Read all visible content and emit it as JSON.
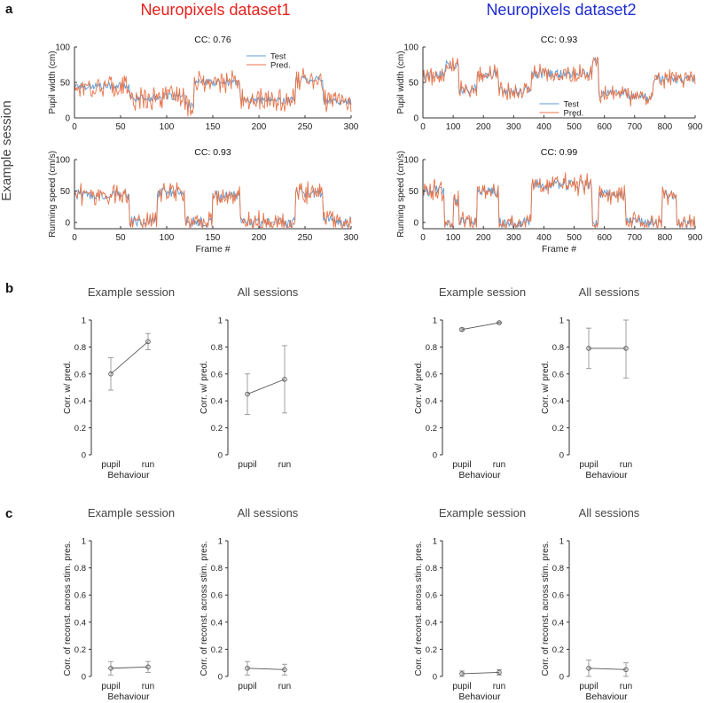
{
  "panel_labels": {
    "a": "a",
    "b": "b",
    "c": "c"
  },
  "dataset_titles": [
    {
      "text": "Neuropixels dataset1",
      "color": "#e8211c"
    },
    {
      "text": "Neuropixels dataset2",
      "color": "#1d2bd0"
    }
  ],
  "row_label": "Example session",
  "colors": {
    "test": "#5b9bd5",
    "pred": "#e8744a",
    "axis": "#333333",
    "marker": "#555555"
  },
  "chart_data": [
    {
      "id": "d1-pupil",
      "type": "line",
      "cc_label": "CC: 0.76",
      "ylabel": "Pupil width (cm)",
      "xlabel": "",
      "xlim": [
        0,
        300
      ],
      "ylim": [
        0,
        100
      ],
      "xticks": [
        0,
        50,
        100,
        150,
        200,
        250,
        300
      ],
      "yticks": [
        0,
        50,
        100
      ],
      "legend": [
        "Test",
        "Pred."
      ],
      "legend_position": "top-right",
      "segments": [
        [
          0,
          60,
          45
        ],
        [
          60,
          90,
          28
        ],
        [
          90,
          120,
          30
        ],
        [
          120,
          130,
          18
        ],
        [
          130,
          180,
          50
        ],
        [
          180,
          240,
          25
        ],
        [
          240,
          270,
          55
        ],
        [
          270,
          300,
          23
        ]
      ],
      "test_noise": 5,
      "pred_noise": 14
    },
    {
      "id": "d1-run",
      "type": "line",
      "cc_label": "CC: 0.93",
      "ylabel": "Running speed (cm/s)",
      "xlabel": "Frame #",
      "xlim": [
        0,
        300
      ],
      "ylim": [
        -10,
        100
      ],
      "xticks": [
        0,
        50,
        100,
        150,
        200,
        250,
        300
      ],
      "yticks": [
        0,
        50,
        100
      ],
      "segments": [
        [
          0,
          60,
          45
        ],
        [
          60,
          90,
          2
        ],
        [
          90,
          120,
          48
        ],
        [
          120,
          150,
          0
        ],
        [
          150,
          180,
          42
        ],
        [
          180,
          240,
          0
        ],
        [
          240,
          270,
          48
        ],
        [
          270,
          300,
          2
        ]
      ],
      "test_noise": 9,
      "pred_noise": 12
    },
    {
      "id": "d2-pupil",
      "type": "line",
      "cc_label": "CC: 0.93",
      "ylabel": "Pupil width (cm)",
      "xlabel": "",
      "xlim": [
        0,
        900
      ],
      "ylim": [
        0,
        100
      ],
      "xticks": [
        0,
        100,
        200,
        300,
        400,
        500,
        600,
        700,
        800,
        900
      ],
      "yticks": [
        0,
        50,
        100
      ],
      "legend": [
        "Test",
        "Pred."
      ],
      "legend_position": "bottom-center",
      "segments": [
        [
          0,
          75,
          60
        ],
        [
          75,
          120,
          75
        ],
        [
          120,
          180,
          40
        ],
        [
          180,
          250,
          62
        ],
        [
          250,
          360,
          38
        ],
        [
          360,
          560,
          62
        ],
        [
          560,
          580,
          80
        ],
        [
          580,
          670,
          35
        ],
        [
          670,
          760,
          30
        ],
        [
          760,
          900,
          55
        ]
      ],
      "test_noise": 7,
      "pred_noise": 9
    },
    {
      "id": "d2-run",
      "type": "line",
      "cc_label": "CC: 0.99",
      "ylabel": "Running speed (cm/s)",
      "xlabel": "Frame #",
      "xlim": [
        0,
        900
      ],
      "ylim": [
        -10,
        100
      ],
      "xticks": [
        0,
        100,
        200,
        300,
        400,
        500,
        600,
        700,
        800,
        900
      ],
      "yticks": [
        0,
        50,
        100
      ],
      "segments": [
        [
          0,
          70,
          50
        ],
        [
          70,
          100,
          0
        ],
        [
          100,
          120,
          35
        ],
        [
          120,
          180,
          0
        ],
        [
          180,
          250,
          50
        ],
        [
          250,
          360,
          0
        ],
        [
          360,
          560,
          60
        ],
        [
          560,
          580,
          0
        ],
        [
          580,
          670,
          45
        ],
        [
          670,
          790,
          0
        ],
        [
          790,
          840,
          45
        ],
        [
          840,
          900,
          0
        ]
      ],
      "test_noise": 9,
      "pred_noise": 11
    },
    {
      "id": "b-d1-example",
      "type": "errorbar",
      "title": "Example session",
      "ylabel": "Corr. w/ pred.",
      "xlabel": "Behaviour",
      "categories": [
        "pupil",
        "run"
      ],
      "values": [
        0.6,
        0.84
      ],
      "errors": [
        0.12,
        0.06
      ],
      "ylim": [
        0,
        1
      ],
      "yticks": [
        0,
        0.2,
        0.4,
        0.6,
        0.8,
        1
      ]
    },
    {
      "id": "b-d1-all",
      "type": "errorbar",
      "title": "All sessions",
      "ylabel": "Corr. w/ pred.",
      "xlabel": "",
      "categories": [
        "pupil",
        "run"
      ],
      "values": [
        0.45,
        0.56
      ],
      "errors": [
        0.15,
        0.25
      ],
      "ylim": [
        0,
        1
      ],
      "yticks": [
        0,
        0.2,
        0.4,
        0.6,
        0.8,
        1
      ]
    },
    {
      "id": "b-d2-example",
      "type": "errorbar",
      "title": "Example session",
      "ylabel": "Corr. w/ pred.",
      "xlabel": "Behaviour",
      "categories": [
        "pupil",
        "run"
      ],
      "values": [
        0.93,
        0.98
      ],
      "errors": [
        0.01,
        0.005
      ],
      "ylim": [
        0,
        1
      ],
      "yticks": [
        0,
        0.2,
        0.4,
        0.6,
        0.8,
        1
      ]
    },
    {
      "id": "b-d2-all",
      "type": "errorbar",
      "title": "All sessions",
      "ylabel": "Corr. w/ pred.",
      "xlabel": "Behaviour",
      "categories": [
        "pupil",
        "run"
      ],
      "values": [
        0.79,
        0.79
      ],
      "errors": [
        0.15,
        0.22
      ],
      "ylim": [
        0,
        1
      ],
      "yticks": [
        0,
        0.2,
        0.4,
        0.6,
        0.8,
        1
      ]
    },
    {
      "id": "c-d1-example",
      "type": "errorbar",
      "title": "Example session",
      "ylabel": "Corr. of reconst. across stim. pres.",
      "xlabel": "Behaviour",
      "categories": [
        "pupil",
        "run"
      ],
      "values": [
        0.06,
        0.07
      ],
      "errors": [
        0.05,
        0.04
      ],
      "ylim": [
        0,
        1
      ],
      "yticks": [
        0,
        0.2,
        0.4,
        0.6,
        0.8,
        1
      ]
    },
    {
      "id": "c-d1-all",
      "type": "errorbar",
      "title": "All sessions",
      "ylabel": "Corr. of reconst. across stim. pres.",
      "xlabel": "",
      "categories": [
        "pupil",
        "run"
      ],
      "values": [
        0.06,
        0.05
      ],
      "errors": [
        0.05,
        0.04
      ],
      "ylim": [
        0,
        1
      ],
      "yticks": [
        0,
        0.2,
        0.4,
        0.6,
        0.8,
        1
      ]
    },
    {
      "id": "c-d2-example",
      "type": "errorbar",
      "title": "Example session",
      "ylabel": "Corr. of reconst. across stim. pres.",
      "xlabel": "Behaviour",
      "categories": [
        "pupil",
        "run"
      ],
      "values": [
        0.02,
        0.03
      ],
      "errors": [
        0.02,
        0.02
      ],
      "ylim": [
        0,
        1
      ],
      "yticks": [
        0,
        0.2,
        0.4,
        0.6,
        0.8,
        1
      ]
    },
    {
      "id": "c-d2-all",
      "type": "errorbar",
      "title": "All sessions",
      "ylabel": "Corr. of reconst. across stim. pres.",
      "xlabel": "Behaviour",
      "categories": [
        "pupil",
        "run"
      ],
      "values": [
        0.06,
        0.05
      ],
      "errors": [
        0.06,
        0.05
      ],
      "ylim": [
        0,
        1
      ],
      "yticks": [
        0,
        0.2,
        0.4,
        0.6,
        0.8,
        1
      ]
    }
  ]
}
